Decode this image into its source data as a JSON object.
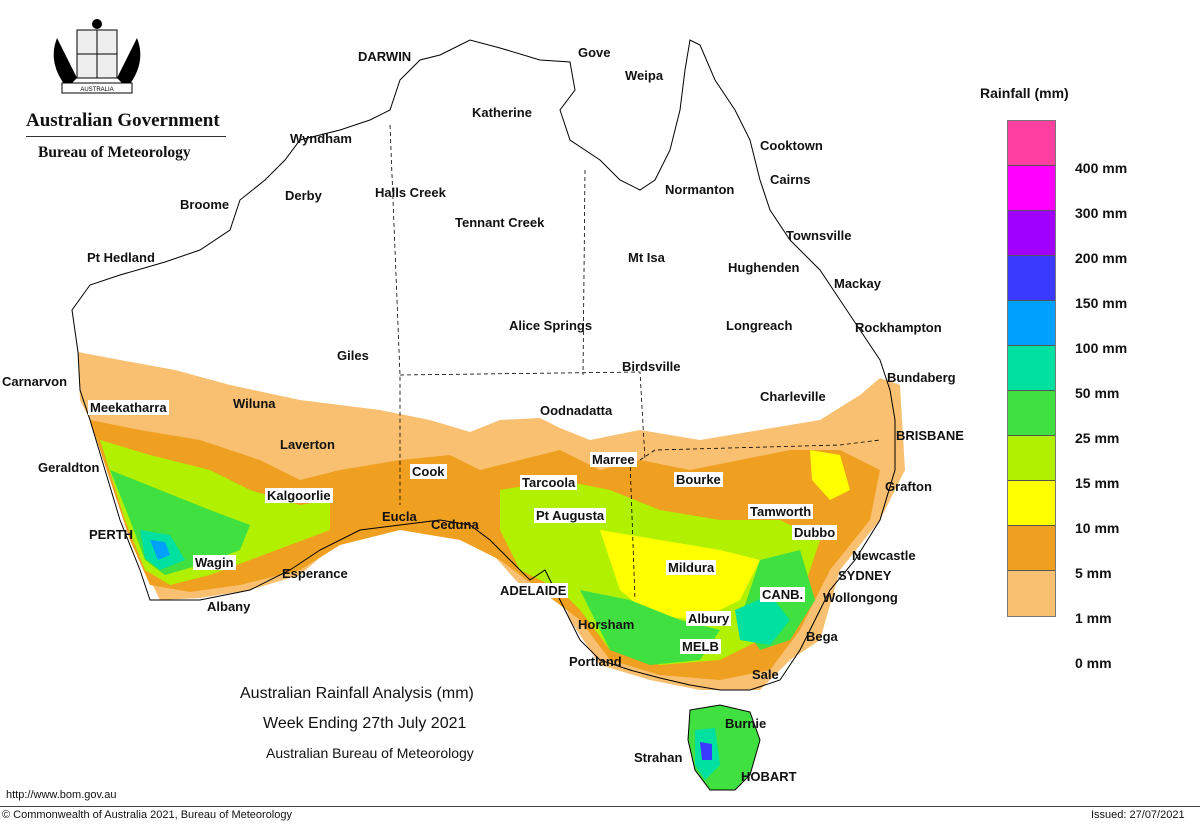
{
  "header": {
    "org_title": "Australian Government",
    "org_subtitle": "Bureau of Meteorology",
    "crest_motto": "AUSTRALIA"
  },
  "map_title": {
    "line1": "Australian Rainfall Analysis (mm)",
    "line2": "Week Ending 27th July 2021",
    "line3": "Australian Bureau of Meteorology"
  },
  "legend": {
    "title": "Rainfall (mm)",
    "bands": [
      {
        "label": "400 mm",
        "color": "#ff40a0"
      },
      {
        "label": "300 mm",
        "color": "#ff00ff"
      },
      {
        "label": "200 mm",
        "color": "#a000ff"
      },
      {
        "label": "150 mm",
        "color": "#3a3aff"
      },
      {
        "label": "100 mm",
        "color": "#00a0ff"
      },
      {
        "label": "50 mm",
        "color": "#00e0a0"
      },
      {
        "label": "25 mm",
        "color": "#40e040"
      },
      {
        "label": "15 mm",
        "color": "#b0f000"
      },
      {
        "label": "10 mm",
        "color": "#ffff00"
      },
      {
        "label": "5 mm",
        "color": "#f0a020"
      },
      {
        "label": "1 mm",
        "color": "#f8c070"
      },
      {
        "label": "0 mm",
        "color": "#ffffff"
      }
    ],
    "extra_label": "0 mm"
  },
  "places": {
    "darwin": "DARWIN",
    "gove": "Gove",
    "weipa": "Weipa",
    "katherine": "Katherine",
    "wyndham": "Wyndham",
    "cooktown": "Cooktown",
    "cairns": "Cairns",
    "normanton": "Normanton",
    "broome": "Broome",
    "derby": "Derby",
    "halls_creek": "Halls Creek",
    "tennant_creek": "Tennant Creek",
    "townsville": "Townsville",
    "pt_hedland": "Pt Hedland",
    "mt_isa": "Mt Isa",
    "hughenden": "Hughenden",
    "mackay": "Mackay",
    "alice_springs": "Alice Springs",
    "longreach": "Longreach",
    "rockhampton": "Rockhampton",
    "giles": "Giles",
    "birdsville": "Birdsville",
    "bundaberg": "Bundaberg",
    "carnarvon": "Carnarvon",
    "charleville": "Charleville",
    "meekatharra": "Meekatharra",
    "wiluna": "Wiluna",
    "oodnadatta": "Oodnadatta",
    "brisbane": "BRISBANE",
    "laverton": "Laverton",
    "geraldton": "Geraldton",
    "marree": "Marree",
    "cook": "Cook",
    "bourke": "Bourke",
    "grafton": "Grafton",
    "tarcoola": "Tarcoola",
    "kalgoorlie": "Kalgoorlie",
    "pt_augusta": "Pt Augusta",
    "tamworth": "Tamworth",
    "eucla": "Eucla",
    "ceduna": "Ceduna",
    "dubbo": "Dubbo",
    "perth": "PERTH",
    "newcastle": "Newcastle",
    "wagin": "Wagin",
    "mildura": "Mildura",
    "sydney": "SYDNEY",
    "esperance": "Esperance",
    "adelaide": "ADELAIDE",
    "canberra": "CANB.",
    "wollongong": "Wollongong",
    "albany": "Albany",
    "albury": "Albury",
    "horsham": "Horsham",
    "bega": "Bega",
    "melbourne": "MELB",
    "portland": "Portland",
    "sale": "Sale",
    "burnie": "Burnie",
    "strahan": "Strahan",
    "hobart": "HOBART"
  },
  "footer": {
    "url": "http://www.bom.gov.au",
    "copyright": "© Commonwealth of Australia 2021, Bureau of Meteorology",
    "issued": "Issued: 27/07/2021"
  }
}
